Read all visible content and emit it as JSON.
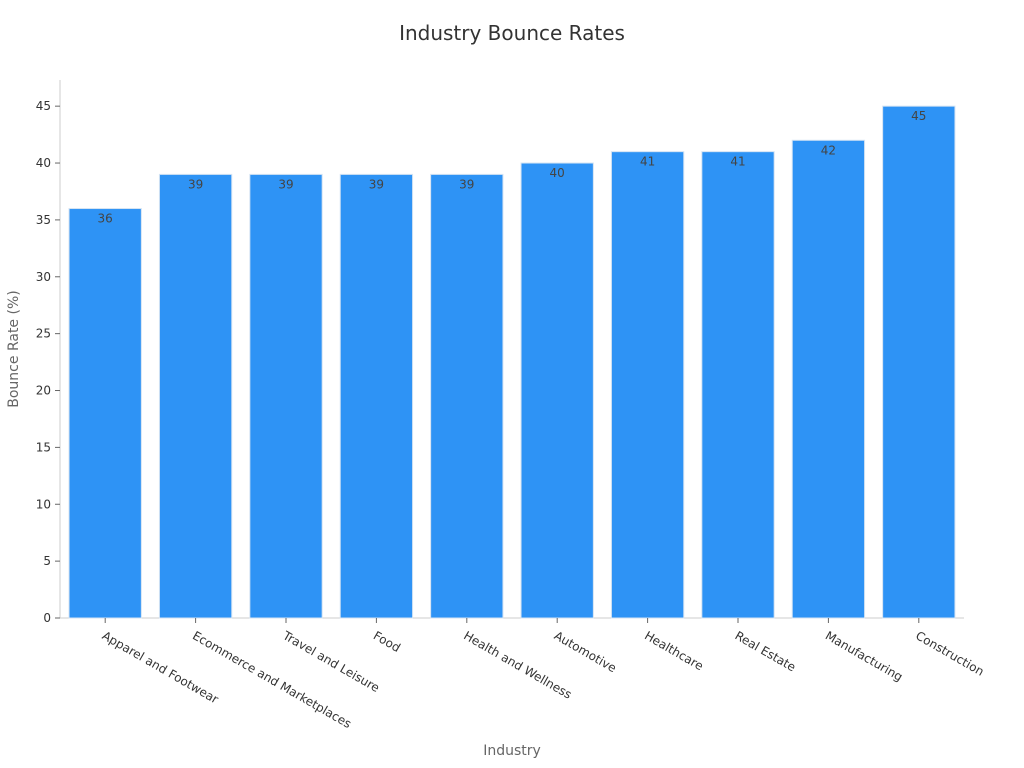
{
  "chart_data": {
    "type": "bar",
    "title": "Industry Bounce Rates",
    "xlabel": "Industry",
    "ylabel": "Bounce Rate (%)",
    "categories": [
      "Apparel and Footwear",
      "Ecommerce and Marketplaces",
      "Travel and Leisure",
      "Food",
      "Health and Wellness",
      "Automotive",
      "Healthcare",
      "Real Estate",
      "Manufacturing",
      "Construction"
    ],
    "values": [
      36,
      39,
      39,
      39,
      39,
      40,
      41,
      41,
      42,
      45
    ],
    "ylim": [
      0,
      47.3
    ],
    "yticks": [
      0,
      5,
      10,
      15,
      20,
      25,
      30,
      35,
      40,
      45
    ],
    "grid": false,
    "legend": "none",
    "colors": {
      "bar": "#2e93f5",
      "bar_edge": "#d4e3f3"
    }
  }
}
